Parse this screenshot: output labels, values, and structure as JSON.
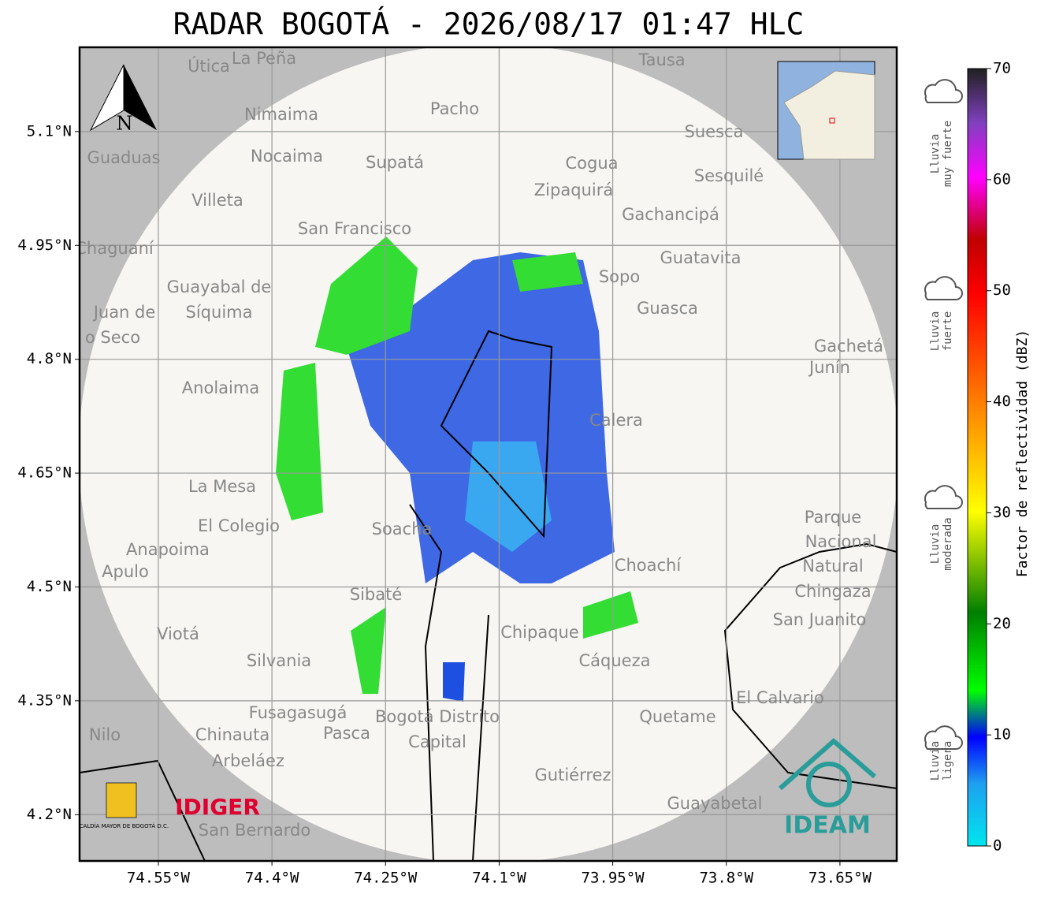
{
  "title": "RADAR BOGOTÁ - 2026/08/17 01:47 HLC",
  "map": {
    "xlim": [
      -74.654,
      -73.575
    ],
    "ylim": [
      4.139,
      5.211
    ],
    "xticks": [
      {
        "value": -74.55,
        "label": "74.55°W"
      },
      {
        "value": -74.4,
        "label": "74.4°W"
      },
      {
        "value": -74.25,
        "label": "74.25°W"
      },
      {
        "value": -74.1,
        "label": "74.1°W"
      },
      {
        "value": -73.95,
        "label": "73.95°W"
      },
      {
        "value": -73.8,
        "label": "73.8°W"
      },
      {
        "value": -73.65,
        "label": "73.65°W"
      }
    ],
    "yticks": [
      {
        "value": 5.1,
        "label": "5.1°N"
      },
      {
        "value": 4.95,
        "label": "4.95°N"
      },
      {
        "value": 4.8,
        "label": "4.8°N"
      },
      {
        "value": 4.65,
        "label": "4.65°N"
      },
      {
        "value": 4.5,
        "label": "4.5°N"
      },
      {
        "value": 4.35,
        "label": "4.35°N"
      },
      {
        "value": 4.2,
        "label": "4.2°N"
      }
    ],
    "north": "N",
    "places": [
      "Útica",
      "La Peña",
      "Tausa",
      "Pacho",
      "Nimaima",
      "Suesca",
      "Guaduas",
      "Nocaima",
      "Supatá",
      "Cogua",
      "Sesquilé",
      "Zipaquirá",
      "Villeta",
      "Gachancipá",
      "San Francisco",
      "Chaguaní",
      "Guatavita",
      "Sopo",
      "Guayabal de",
      "Síquima",
      "Guasca",
      "Juan de",
      "o Seco",
      "Gachetá",
      "Junín",
      "Anolaima",
      "Calera",
      "La Mesa",
      "Parque",
      "Nacional",
      "Natural",
      "Chingaza",
      "El Colegio",
      "Soacha",
      "Anapoima",
      "Apulo",
      "Choachí",
      "Sibaté",
      "San Juanito",
      "Viotá",
      "Chipaque",
      "Silvania",
      "Cáqueza",
      "El Calvario",
      "Nilo",
      "Fusagasugá",
      "Quetame",
      "Bogotá Distrito",
      "Capital",
      "Chinauta",
      "Pasca",
      "Arbeláez",
      "Gutiérrez",
      "Guayabetal",
      "San Bernardo"
    ],
    "logos": {
      "alcaldia": "ALCALDÍA MAYOR DE BOGOTÁ D.C.",
      "idiger": "IDIGER",
      "ideam": "IDEAM"
    }
  },
  "colorbar": {
    "label": "Factor de reflectividad (dBZ)",
    "lim": [
      0,
      70
    ],
    "ticks": [
      0,
      10,
      20,
      30,
      40,
      50,
      60,
      70
    ]
  },
  "rain_levels": [
    {
      "line1": "Lluvia",
      "line2": "muy fuerte"
    },
    {
      "line1": "Lluvia",
      "line2": "fuerte"
    },
    {
      "line1": "Lluvia",
      "line2": "moderada"
    },
    {
      "line1": "Lluvia",
      "line2": "ligera"
    }
  ]
}
